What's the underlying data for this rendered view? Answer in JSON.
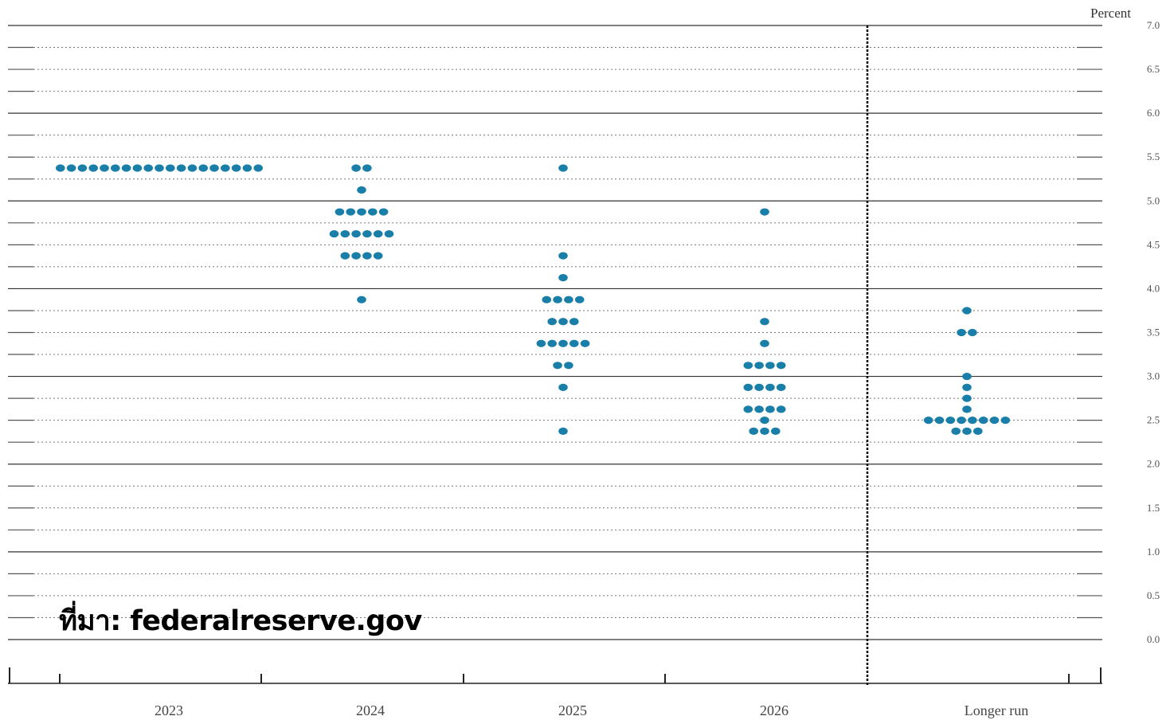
{
  "chart_data": {
    "type": "scatter",
    "unit_label": "Percent",
    "ylim": [
      0,
      7
    ],
    "y_ticks": [
      "0.0",
      "0.5",
      "1.0",
      "1.5",
      "2.0",
      "2.5",
      "3.0",
      "3.5",
      "4.0",
      "4.5",
      "5.0",
      "5.5",
      "6.0",
      "6.5",
      "7.0"
    ],
    "categories": [
      "2023",
      "2024",
      "2025",
      "2026",
      "Longer run"
    ],
    "dot_color": "#1a7fa8",
    "series": [
      {
        "category": "2023",
        "points": [
          {
            "y": 5.375,
            "count": 19
          }
        ]
      },
      {
        "category": "2024",
        "points": [
          {
            "y": 5.375,
            "count": 2
          },
          {
            "y": 5.125,
            "count": 1
          },
          {
            "y": 4.875,
            "count": 5
          },
          {
            "y": 4.625,
            "count": 6
          },
          {
            "y": 4.375,
            "count": 4
          },
          {
            "y": 3.875,
            "count": 1
          }
        ]
      },
      {
        "category": "2025",
        "points": [
          {
            "y": 5.375,
            "count": 1
          },
          {
            "y": 4.375,
            "count": 1
          },
          {
            "y": 4.125,
            "count": 1
          },
          {
            "y": 3.875,
            "count": 4
          },
          {
            "y": 3.625,
            "count": 3
          },
          {
            "y": 3.375,
            "count": 5
          },
          {
            "y": 3.125,
            "count": 2
          },
          {
            "y": 2.875,
            "count": 1
          },
          {
            "y": 2.375,
            "count": 1
          }
        ]
      },
      {
        "category": "2026",
        "points": [
          {
            "y": 4.875,
            "count": 1
          },
          {
            "y": 3.625,
            "count": 1
          },
          {
            "y": 3.375,
            "count": 1
          },
          {
            "y": 3.125,
            "count": 4
          },
          {
            "y": 2.875,
            "count": 4
          },
          {
            "y": 2.625,
            "count": 4
          },
          {
            "y": 2.5,
            "count": 1
          },
          {
            "y": 2.375,
            "count": 3
          }
        ]
      },
      {
        "category": "Longer run",
        "points": [
          {
            "y": 3.75,
            "count": 1
          },
          {
            "y": 3.5,
            "count": 2
          },
          {
            "y": 3.0,
            "count": 1
          },
          {
            "y": 2.875,
            "count": 1
          },
          {
            "y": 2.75,
            "count": 1
          },
          {
            "y": 2.625,
            "count": 1
          },
          {
            "y": 2.5,
            "count": 8
          },
          {
            "y": 2.375,
            "count": 3
          }
        ]
      }
    ]
  },
  "source_text": "ที่มา: federalreserve.gov"
}
